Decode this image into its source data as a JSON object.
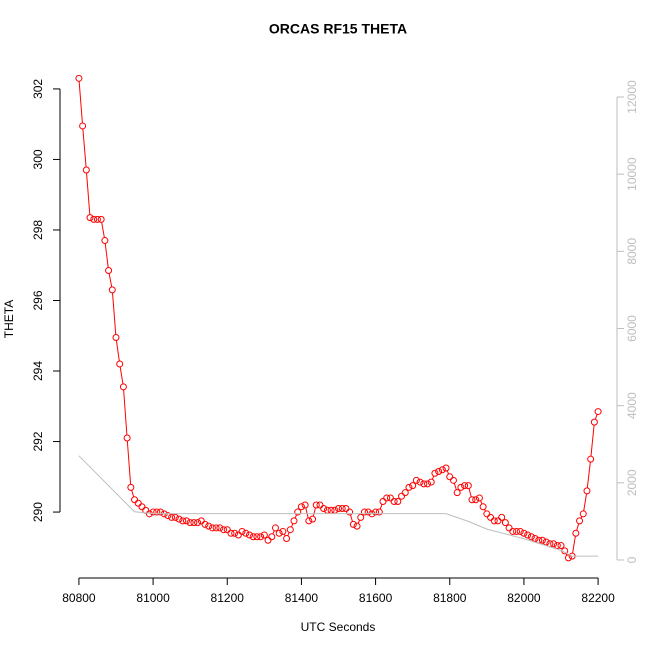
{
  "chart_data": {
    "type": "line",
    "title": "ORCAS RF15 THETA",
    "xlabel": "UTC Seconds",
    "ylabel": "THETA",
    "xlim": [
      80749,
      82251
    ],
    "ylim": [
      288.13,
      302.82
    ],
    "y2lim": [
      -467,
      12959
    ],
    "xticks": [
      80800,
      81000,
      81200,
      81400,
      81600,
      81800,
      82000,
      82200
    ],
    "yticks": [
      290,
      292,
      294,
      296,
      298,
      300,
      302
    ],
    "y2ticks": [
      0,
      2000,
      4000,
      6000,
      8000,
      10000,
      12000
    ],
    "series": [
      {
        "color": "#ff0000",
        "marker": "circle",
        "x": [
          80800,
          80810,
          80820,
          80830,
          80840,
          80850,
          80860,
          80870,
          80880,
          80890,
          80900,
          80910,
          80920,
          80930,
          80940,
          80950,
          80960,
          80970,
          80980,
          80990,
          81000,
          81010,
          81020,
          81030,
          81040,
          81050,
          81060,
          81070,
          81080,
          81090,
          81100,
          81110,
          81120,
          81130,
          81140,
          81150,
          81160,
          81170,
          81180,
          81190,
          81200,
          81210,
          81220,
          81230,
          81240,
          81250,
          81260,
          81270,
          81280,
          81290,
          81300,
          81310,
          81320,
          81330,
          81340,
          81350,
          81360,
          81370,
          81380,
          81390,
          81400,
          81410,
          81420,
          81430,
          81440,
          81450,
          81460,
          81470,
          81480,
          81490,
          81500,
          81510,
          81520,
          81530,
          81540,
          81550,
          81560,
          81570,
          81580,
          81590,
          81600,
          81610,
          81620,
          81630,
          81640,
          81650,
          81660,
          81670,
          81680,
          81690,
          81700,
          81710,
          81720,
          81730,
          81740,
          81750,
          81760,
          81770,
          81780,
          81790,
          81800,
          81810,
          81820,
          81830,
          81840,
          81850,
          81860,
          81870,
          81880,
          81890,
          81900,
          81910,
          81920,
          81930,
          81940,
          81950,
          81960,
          81970,
          81980,
          81990,
          82000,
          82010,
          82020,
          82030,
          82040,
          82050,
          82060,
          82070,
          82080,
          82090,
          82100,
          82110,
          82120,
          82130,
          82140,
          82150,
          82160,
          82170,
          82180,
          82190,
          82200
        ],
        "values": [
          302.3,
          300.95,
          299.7,
          298.35,
          298.3,
          298.3,
          298.3,
          297.7,
          296.85,
          296.3,
          294.95,
          294.2,
          293.55,
          292.1,
          290.7,
          290.35,
          290.25,
          290.15,
          290.05,
          289.95,
          290.0,
          290.0,
          290.0,
          289.95,
          289.9,
          289.85,
          289.85,
          289.8,
          289.75,
          289.75,
          289.7,
          289.7,
          289.7,
          289.75,
          289.65,
          289.6,
          289.55,
          289.55,
          289.55,
          289.5,
          289.5,
          289.4,
          289.4,
          289.35,
          289.45,
          289.4,
          289.35,
          289.3,
          289.3,
          289.3,
          289.35,
          289.2,
          289.3,
          289.55,
          289.4,
          289.45,
          289.25,
          289.5,
          289.75,
          290.0,
          290.15,
          290.2,
          289.75,
          289.8,
          290.2,
          290.2,
          290.1,
          290.05,
          290.05,
          290.05,
          290.1,
          290.1,
          290.1,
          290.0,
          289.65,
          289.6,
          289.85,
          290.0,
          290.0,
          289.95,
          290.0,
          290.0,
          290.3,
          290.4,
          290.4,
          290.3,
          290.3,
          290.45,
          290.55,
          290.7,
          290.75,
          290.9,
          290.85,
          290.8,
          290.8,
          290.85,
          291.1,
          291.15,
          291.2,
          291.25,
          291.0,
          290.9,
          290.55,
          290.7,
          290.75,
          290.75,
          290.35,
          290.35,
          290.4,
          290.15,
          289.95,
          289.85,
          289.75,
          289.75,
          289.85,
          289.7,
          289.55,
          289.45,
          289.45,
          289.45,
          289.4,
          289.35,
          289.3,
          289.25,
          289.2,
          289.2,
          289.15,
          289.1,
          289.1,
          289.05,
          289.05,
          288.9,
          288.7,
          288.75,
          289.4,
          289.75,
          289.95,
          290.6,
          291.5,
          292.55,
          292.85
        ]
      },
      {
        "color": "#bebebe",
        "axis": "y2",
        "x": [
          80800,
          80950,
          81000,
          81790,
          81850,
          81900,
          82000,
          82100,
          82130,
          82200
        ],
        "values": [
          2700,
          1250,
          1200,
          1200,
          1000,
          800,
          550,
          250,
          100,
          100
        ]
      }
    ]
  }
}
